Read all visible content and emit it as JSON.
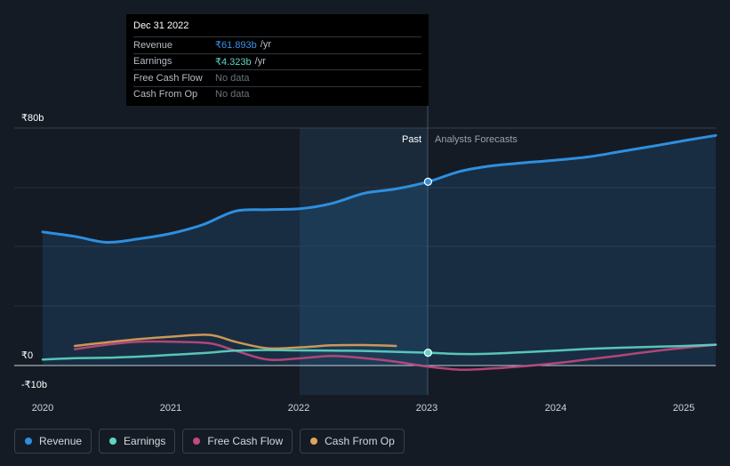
{
  "colors": {
    "revenue": "#2e8fdf",
    "earnings": "#5ed6c5",
    "free_cash_flow": "#c2497e",
    "cash_from_op": "#e0a35a",
    "background": "#151b24",
    "text_value_revenue": "#3a92e6",
    "text_value_earnings": "#5ed6c5"
  },
  "tooltip": {
    "date": "Dec 31 2022",
    "rows": [
      {
        "label": "Revenue",
        "value": "₹61.893b",
        "unit": "/yr"
      },
      {
        "label": "Earnings",
        "value": "₹4.323b",
        "unit": "/yr"
      },
      {
        "label": "Free Cash Flow",
        "value": "No data",
        "unit": ""
      },
      {
        "label": "Cash From Op",
        "value": "No data",
        "unit": ""
      }
    ]
  },
  "legend": [
    {
      "label": "Revenue",
      "color": "#2e8fdf"
    },
    {
      "label": "Earnings",
      "color": "#5ed6c5"
    },
    {
      "label": "Free Cash Flow",
      "color": "#c2497e"
    },
    {
      "label": "Cash From Op",
      "color": "#e0a35a"
    }
  ],
  "chart_data": {
    "type": "line",
    "title": "",
    "xlabel": "",
    "ylabel": "",
    "unit": "₹ billions",
    "xlim": [
      2020,
      2025.24
    ],
    "ylim": [
      -10,
      80
    ],
    "x_ticks": [
      {
        "value": 2020,
        "label": "2020"
      },
      {
        "value": 2021,
        "label": "2021"
      },
      {
        "value": 2022,
        "label": "2022"
      },
      {
        "value": 2023,
        "label": "2023"
      },
      {
        "value": 2024,
        "label": "2024"
      },
      {
        "value": 2025,
        "label": "2025"
      }
    ],
    "y_ticks": [
      {
        "value": 80,
        "label": "₹80b"
      },
      {
        "value": 0,
        "label": "₹0"
      },
      {
        "value": -10,
        "label": "-₹10b"
      }
    ],
    "past_label": "Past",
    "forecast_label": "Analysts Forecasts",
    "divider_x": 2023,
    "highlight_start_x": 2022,
    "series": [
      {
        "name": "Revenue",
        "x": [
          2020,
          2020.25,
          2020.5,
          2020.75,
          2021,
          2021.25,
          2021.5,
          2021.75,
          2022,
          2022.25,
          2022.5,
          2022.75,
          2023,
          2023.25,
          2023.5,
          2023.75,
          2024,
          2024.25,
          2024.5,
          2024.75,
          2025,
          2025.24
        ],
        "values": [
          45,
          43.5,
          41.5,
          42.7,
          44.5,
          47.5,
          52,
          52.5,
          52.8,
          54.6,
          58,
          59.5,
          61.9,
          65.4,
          67.3,
          68.3,
          69.2,
          70.3,
          72.1,
          73.9,
          75.8,
          77.5
        ]
      },
      {
        "name": "Earnings",
        "x": [
          2020,
          2020.25,
          2020.5,
          2020.75,
          2021,
          2021.25,
          2021.5,
          2021.75,
          2022,
          2022.25,
          2022.5,
          2022.75,
          2023,
          2023.25,
          2023.5,
          2023.75,
          2024,
          2024.25,
          2024.5,
          2024.75,
          2025,
          2025.24
        ],
        "values": [
          2,
          2.5,
          2.6,
          3,
          3.6,
          4.2,
          5,
          5.2,
          5.1,
          5,
          4.9,
          4.6,
          4.3,
          3.9,
          4,
          4.5,
          5,
          5.6,
          6,
          6.3,
          6.6,
          7
        ]
      },
      {
        "name": "Free Cash Flow",
        "x": [
          2020.25,
          2020.5,
          2020.75,
          2021,
          2021.3,
          2021.5,
          2021.75,
          2022,
          2022.25,
          2022.5,
          2022.75,
          2023,
          2023.25,
          2023.5,
          2023.75,
          2024,
          2024.25,
          2024.5,
          2024.75,
          2025,
          2025.24
        ],
        "values": [
          5.5,
          7,
          8,
          8,
          7.5,
          5,
          2,
          2.4,
          3.2,
          2.5,
          1.3,
          -0.4,
          -1.4,
          -1,
          -0.2,
          0.8,
          2.1,
          3.4,
          4.8,
          6,
          7
        ]
      },
      {
        "name": "Cash From Op",
        "x": [
          2020.25,
          2020.5,
          2020.75,
          2021,
          2021.3,
          2021.5,
          2021.75,
          2022,
          2022.25,
          2022.5,
          2022.75
        ],
        "values": [
          6.6,
          7.8,
          8.9,
          9.7,
          10.3,
          8,
          5.8,
          6.1,
          6.8,
          6.9,
          6.6
        ]
      }
    ],
    "markers": [
      {
        "series": "Revenue",
        "x": 2023,
        "value": 61.9
      },
      {
        "series": "Earnings",
        "x": 2023,
        "value": 4.3
      }
    ]
  }
}
